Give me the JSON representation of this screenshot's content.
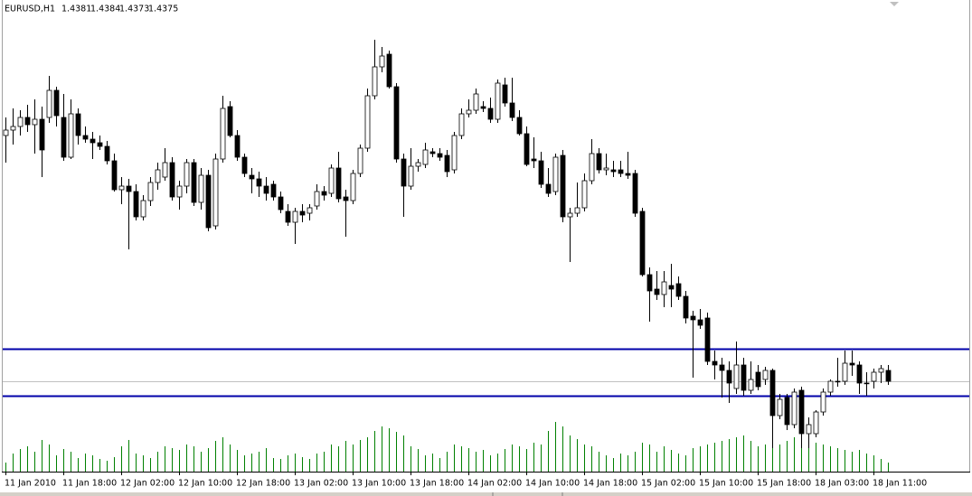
{
  "chart_data": {
    "type": "candlestick",
    "symbol": "EURUSD,H1",
    "ylim": [
      1.4325,
      1.4586
    ],
    "volume_ylim": [
      0,
      100
    ],
    "up_color": "#ffffff",
    "down_color": "#000000",
    "wick_color": "#000000",
    "volume_color": "#008000",
    "hline_color": "#0000aa",
    "bid_color": "#c0c0c0",
    "hlines": [
      1.4393,
      1.4367
    ],
    "bid": 1.4375,
    "xtick_labels": [
      "11 Jan 2010",
      "11 Jan 18:00",
      "12 Jan 02:00",
      "12 Jan 10:00",
      "12 Jan 18:00",
      "13 Jan 02:00",
      "13 Jan 10:00",
      "13 Jan 18:00",
      "14 Jan 02:00",
      "14 Jan 10:00",
      "14 Jan 18:00",
      "15 Jan 02:00",
      "15 Jan 10:00",
      "15 Jan 18:00",
      "18 Jan 03:00",
      "18 Jan 11:00"
    ],
    "candles": [
      [
        1.4511,
        1.4521,
        1.4496,
        1.4514
      ],
      [
        1.4514,
        1.4526,
        1.4506,
        1.4516
      ],
      [
        1.4516,
        1.4525,
        1.4511,
        1.4521
      ],
      [
        1.4521,
        1.4528,
        1.4513,
        1.4517
      ],
      [
        1.4517,
        1.4531,
        1.4501,
        1.452
      ],
      [
        1.452,
        1.4527,
        1.4488,
        1.4503
      ],
      [
        1.4521,
        1.4544,
        1.4518,
        1.4536
      ],
      [
        1.4536,
        1.4538,
        1.4516,
        1.4522
      ],
      [
        1.4521,
        1.4534,
        1.4497,
        1.4499
      ],
      [
        1.4499,
        1.4531,
        1.4498,
        1.4523
      ],
      [
        1.4523,
        1.4526,
        1.4506,
        1.4511
      ],
      [
        1.4511,
        1.4516,
        1.4507,
        1.4509
      ],
      [
        1.4509,
        1.4513,
        1.4498,
        1.4507
      ],
      [
        1.4507,
        1.4511,
        1.4503,
        1.4505
      ],
      [
        1.4505,
        1.4508,
        1.4495,
        1.4497
      ],
      [
        1.4497,
        1.4501,
        1.448,
        1.4481
      ],
      [
        1.4481,
        1.4488,
        1.4473,
        1.4483
      ],
      [
        1.4483,
        1.4487,
        1.4448,
        1.448
      ],
      [
        1.448,
        1.4484,
        1.4464,
        1.4466
      ],
      [
        1.4466,
        1.4478,
        1.4464,
        1.4475
      ],
      [
        1.4475,
        1.4488,
        1.4472,
        1.4485
      ],
      [
        1.4485,
        1.4496,
        1.4481,
        1.4492
      ],
      [
        1.4488,
        1.4504,
        1.4486,
        1.4496
      ],
      [
        1.4496,
        1.4499,
        1.4475,
        1.4477
      ],
      [
        1.4477,
        1.4486,
        1.447,
        1.4483
      ],
      [
        1.4483,
        1.4498,
        1.4479,
        1.4496
      ],
      [
        1.4496,
        1.4498,
        1.4472,
        1.4474
      ],
      [
        1.4474,
        1.4493,
        1.447,
        1.4489
      ],
      [
        1.4489,
        1.4492,
        1.4458,
        1.446
      ],
      [
        1.4461,
        1.4501,
        1.4459,
        1.4498
      ],
      [
        1.4498,
        1.4533,
        1.4496,
        1.4526
      ],
      [
        1.4527,
        1.453,
        1.451,
        1.4511
      ],
      [
        1.4511,
        1.4514,
        1.4497,
        1.4499
      ],
      [
        1.4499,
        1.4501,
        1.4488,
        1.449
      ],
      [
        1.4489,
        1.4493,
        1.4479,
        1.4487
      ],
      [
        1.4487,
        1.4491,
        1.4477,
        1.4483
      ],
      [
        1.4483,
        1.4488,
        1.4475,
        1.4479
      ],
      [
        1.4484,
        1.4486,
        1.4475,
        1.4477
      ],
      [
        1.4477,
        1.448,
        1.4468,
        1.447
      ],
      [
        1.4469,
        1.4473,
        1.4461,
        1.4463
      ],
      [
        1.4463,
        1.4471,
        1.4451,
        1.4469
      ],
      [
        1.4469,
        1.4473,
        1.4463,
        1.4467
      ],
      [
        1.4468,
        1.4473,
        1.4464,
        1.4471
      ],
      [
        1.4472,
        1.4484,
        1.447,
        1.448
      ],
      [
        1.448,
        1.4483,
        1.4475,
        1.4478
      ],
      [
        1.4479,
        1.4495,
        1.4477,
        1.4493
      ],
      [
        1.4493,
        1.4502,
        1.4474,
        1.4476
      ],
      [
        1.4477,
        1.4481,
        1.4455,
        1.4475
      ],
      [
        1.4475,
        1.4492,
        1.4473,
        1.449
      ],
      [
        1.449,
        1.4506,
        1.4488,
        1.4504
      ],
      [
        1.4504,
        1.4537,
        1.4502,
        1.4533
      ],
      [
        1.4533,
        1.4564,
        1.4531,
        1.4549
      ],
      [
        1.4549,
        1.456,
        1.4546,
        1.4555
      ],
      [
        1.4556,
        1.4558,
        1.4537,
        1.4538
      ],
      [
        1.4538,
        1.454,
        1.4496,
        1.4498
      ],
      [
        1.4498,
        1.4501,
        1.4466,
        1.4483
      ],
      [
        1.4483,
        1.4504,
        1.4481,
        1.4494
      ],
      [
        1.4494,
        1.4498,
        1.4491,
        1.4496
      ],
      [
        1.4495,
        1.4507,
        1.4493,
        1.4503
      ],
      [
        1.4502,
        1.4504,
        1.4499,
        1.4501
      ],
      [
        1.4501,
        1.4504,
        1.4497,
        1.4499
      ],
      [
        1.45,
        1.4503,
        1.4488,
        1.4491
      ],
      [
        1.4492,
        1.4513,
        1.449,
        1.4511
      ],
      [
        1.4511,
        1.4526,
        1.4509,
        1.4523
      ],
      [
        1.4523,
        1.4531,
        1.4521,
        1.4525
      ],
      [
        1.4525,
        1.4537,
        1.4523,
        1.4534
      ],
      [
        1.4527,
        1.453,
        1.4524,
        1.4526
      ],
      [
        1.4526,
        1.4532,
        1.4518,
        1.452
      ],
      [
        1.452,
        1.4542,
        1.4518,
        1.454
      ],
      [
        1.4539,
        1.4543,
        1.4527,
        1.4529
      ],
      [
        1.4529,
        1.4543,
        1.4519,
        1.4521
      ],
      [
        1.4521,
        1.4525,
        1.4511,
        1.4512
      ],
      [
        1.4512,
        1.4516,
        1.4494,
        1.4495
      ],
      [
        1.4498,
        1.451,
        1.4493,
        1.4497
      ],
      [
        1.4497,
        1.4502,
        1.4482,
        1.4484
      ],
      [
        1.4484,
        1.4493,
        1.4477,
        1.4479
      ],
      [
        1.448,
        1.4501,
        1.4478,
        1.4499
      ],
      [
        1.45,
        1.4503,
        1.4463,
        1.4466
      ],
      [
        1.4466,
        1.4471,
        1.4441,
        1.4468
      ],
      [
        1.4468,
        1.4485,
        1.4466,
        1.4471
      ],
      [
        1.4471,
        1.449,
        1.4469,
        1.4486
      ],
      [
        1.4486,
        1.4509,
        1.4484,
        1.4501
      ],
      [
        1.4501,
        1.4504,
        1.449,
        1.4492
      ],
      [
        1.4492,
        1.4501,
        1.4489,
        1.4493
      ],
      [
        1.4492,
        1.4497,
        1.4488,
        1.4491
      ],
      [
        1.4492,
        1.4497,
        1.4488,
        1.449
      ],
      [
        1.449,
        1.4502,
        1.4487,
        1.4489
      ],
      [
        1.449,
        1.4492,
        1.4466,
        1.4468
      ],
      [
        1.4469,
        1.4471,
        1.4433,
        1.4434
      ],
      [
        1.4434,
        1.4438,
        1.4408,
        1.4425
      ],
      [
        1.4426,
        1.4436,
        1.442,
        1.4423
      ],
      [
        1.4423,
        1.4436,
        1.4416,
        1.443
      ],
      [
        1.4428,
        1.444,
        1.4416,
        1.4426
      ],
      [
        1.4429,
        1.4433,
        1.442,
        1.4422
      ],
      [
        1.4422,
        1.4425,
        1.4407,
        1.441
      ],
      [
        1.4411,
        1.4414,
        1.4377,
        1.4409
      ],
      [
        1.4409,
        1.4415,
        1.4404,
        1.4406
      ],
      [
        1.441,
        1.4413,
        1.4384,
        1.4386
      ],
      [
        1.4386,
        1.4392,
        1.4376,
        1.4384
      ],
      [
        1.4384,
        1.4388,
        1.4366,
        1.4381
      ],
      [
        1.4381,
        1.4386,
        1.4363,
        1.4374
      ],
      [
        1.4371,
        1.4397,
        1.4368,
        1.4384
      ],
      [
        1.4384,
        1.4388,
        1.4367,
        1.437
      ],
      [
        1.437,
        1.4386,
        1.4368,
        1.4376
      ],
      [
        1.438,
        1.4384,
        1.437,
        1.4372
      ],
      [
        1.4376,
        1.4383,
        1.4373,
        1.4381
      ],
      [
        1.4381,
        1.4382,
        1.4338,
        1.4356
      ],
      [
        1.4356,
        1.4368,
        1.4354,
        1.4365
      ],
      [
        1.4366,
        1.4368,
        1.4348,
        1.4351
      ],
      [
        1.4351,
        1.4371,
        1.4349,
        1.4369
      ],
      [
        1.437,
        1.4372,
        1.4338,
        1.4346
      ],
      [
        1.4346,
        1.4355,
        1.4338,
        1.4351
      ],
      [
        1.4346,
        1.4359,
        1.4344,
        1.4358
      ],
      [
        1.4358,
        1.4371,
        1.4356,
        1.4369
      ],
      [
        1.4369,
        1.4376,
        1.4367,
        1.4375
      ],
      [
        1.4375,
        1.4388,
        1.4372,
        1.4375
      ],
      [
        1.4375,
        1.4392,
        1.4373,
        1.4385
      ],
      [
        1.4385,
        1.4392,
        1.4378,
        1.4384
      ],
      [
        1.4384,
        1.4386,
        1.4368,
        1.4374
      ],
      [
        1.4374,
        1.438,
        1.4367,
        1.4374
      ],
      [
        1.4375,
        1.4382,
        1.4371,
        1.438
      ],
      [
        1.438,
        1.4384,
        1.4374,
        1.4382
      ],
      [
        1.4381,
        1.4384,
        1.4373,
        1.4375
      ]
    ],
    "volumes": [
      10,
      20,
      25,
      28,
      22,
      35,
      30,
      18,
      25,
      22,
      15,
      20,
      18,
      14,
      12,
      16,
      28,
      35,
      20,
      18,
      15,
      22,
      28,
      26,
      24,
      30,
      28,
      22,
      26,
      34,
      38,
      30,
      24,
      18,
      20,
      22,
      26,
      15,
      14,
      18,
      20,
      16,
      14,
      20,
      22,
      30,
      28,
      34,
      30,
      35,
      38,
      45,
      50,
      48,
      44,
      40,
      28,
      25,
      18,
      20,
      15,
      22,
      30,
      28,
      26,
      22,
      24,
      18,
      20,
      25,
      30,
      28,
      25,
      32,
      30,
      45,
      55,
      50,
      40,
      36,
      30,
      28,
      22,
      18,
      15,
      20,
      18,
      22,
      32,
      30,
      22,
      28,
      24,
      20,
      18,
      26,
      28,
      30,
      32,
      34,
      36,
      38,
      40,
      34,
      28,
      30,
      38,
      30,
      34,
      38,
      40,
      36,
      32,
      30,
      28,
      26,
      24,
      22,
      24,
      20,
      18,
      14,
      10
    ]
  }
}
